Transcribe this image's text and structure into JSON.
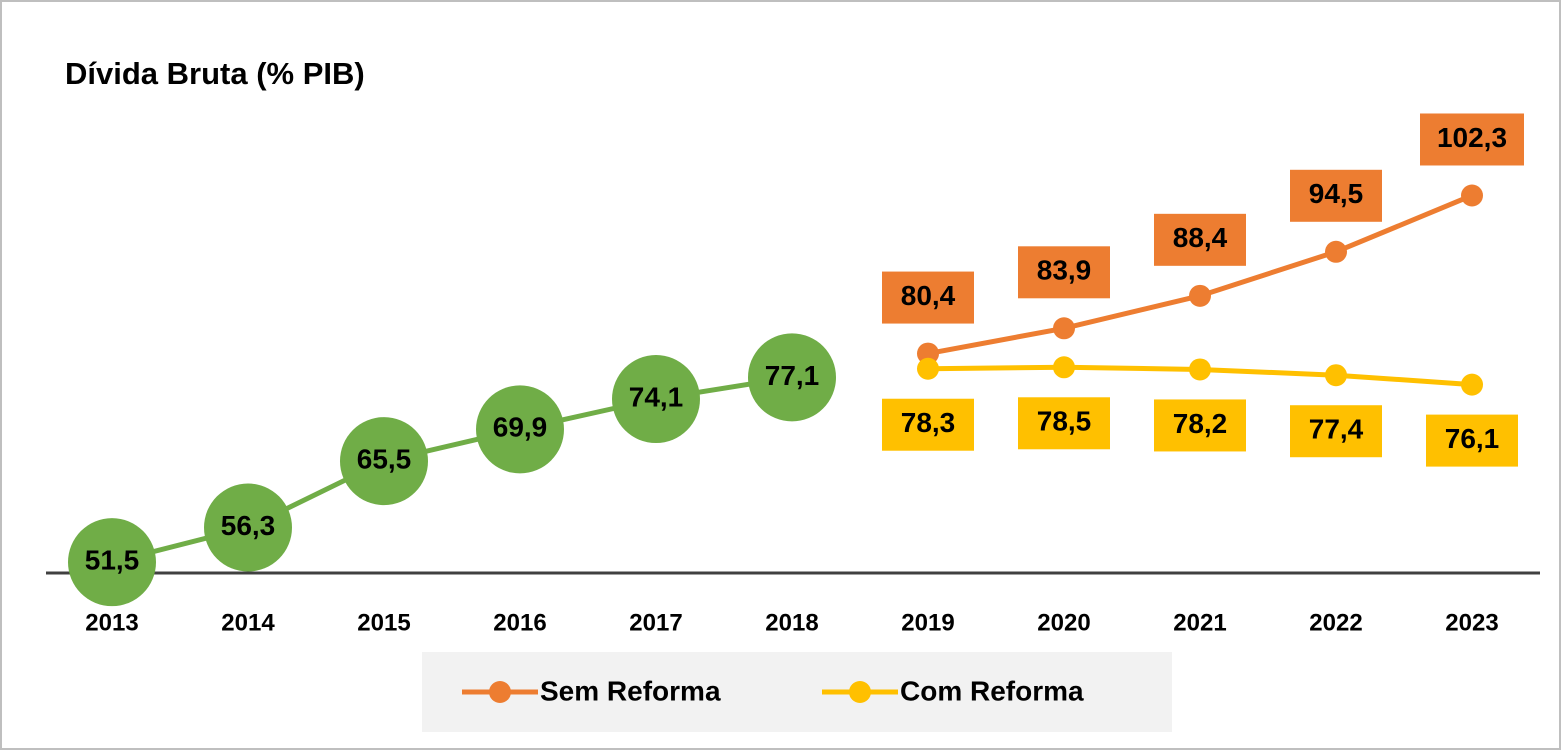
{
  "chart_data": {
    "type": "line",
    "title": "Dívida Bruta (% PIB)",
    "categories": [
      "2013",
      "2014",
      "2015",
      "2016",
      "2017",
      "2018",
      "2019",
      "2020",
      "2021",
      "2022",
      "2023"
    ],
    "series": [
      {
        "color": "#70ad47",
        "values": [
          51.5,
          56.3,
          65.5,
          69.9,
          74.1,
          77.1,
          null,
          null,
          null,
          null,
          null
        ],
        "value_labels": [
          "51,5",
          "56,3",
          "65,5",
          "69,9",
          "74,1",
          "77,1",
          null,
          null,
          null,
          null,
          null
        ]
      },
      {
        "name": "Sem Reforma",
        "color": "#ed7d31",
        "values": [
          null,
          null,
          null,
          null,
          null,
          null,
          80.4,
          83.9,
          88.4,
          94.5,
          102.3
        ],
        "value_labels": [
          null,
          null,
          null,
          null,
          null,
          null,
          "80,4",
          "83,9",
          "88,4",
          "94,5",
          "102,3"
        ]
      },
      {
        "name": "Com Reforma",
        "color": "#ffc000",
        "values": [
          null,
          null,
          null,
          null,
          null,
          null,
          78.3,
          78.5,
          78.2,
          77.4,
          76.1
        ],
        "value_labels": [
          null,
          null,
          null,
          null,
          null,
          null,
          "78,3",
          "78,5",
          "78,2",
          "77,4",
          "76,1"
        ]
      }
    ],
    "ylim": [
      50,
      105
    ]
  }
}
